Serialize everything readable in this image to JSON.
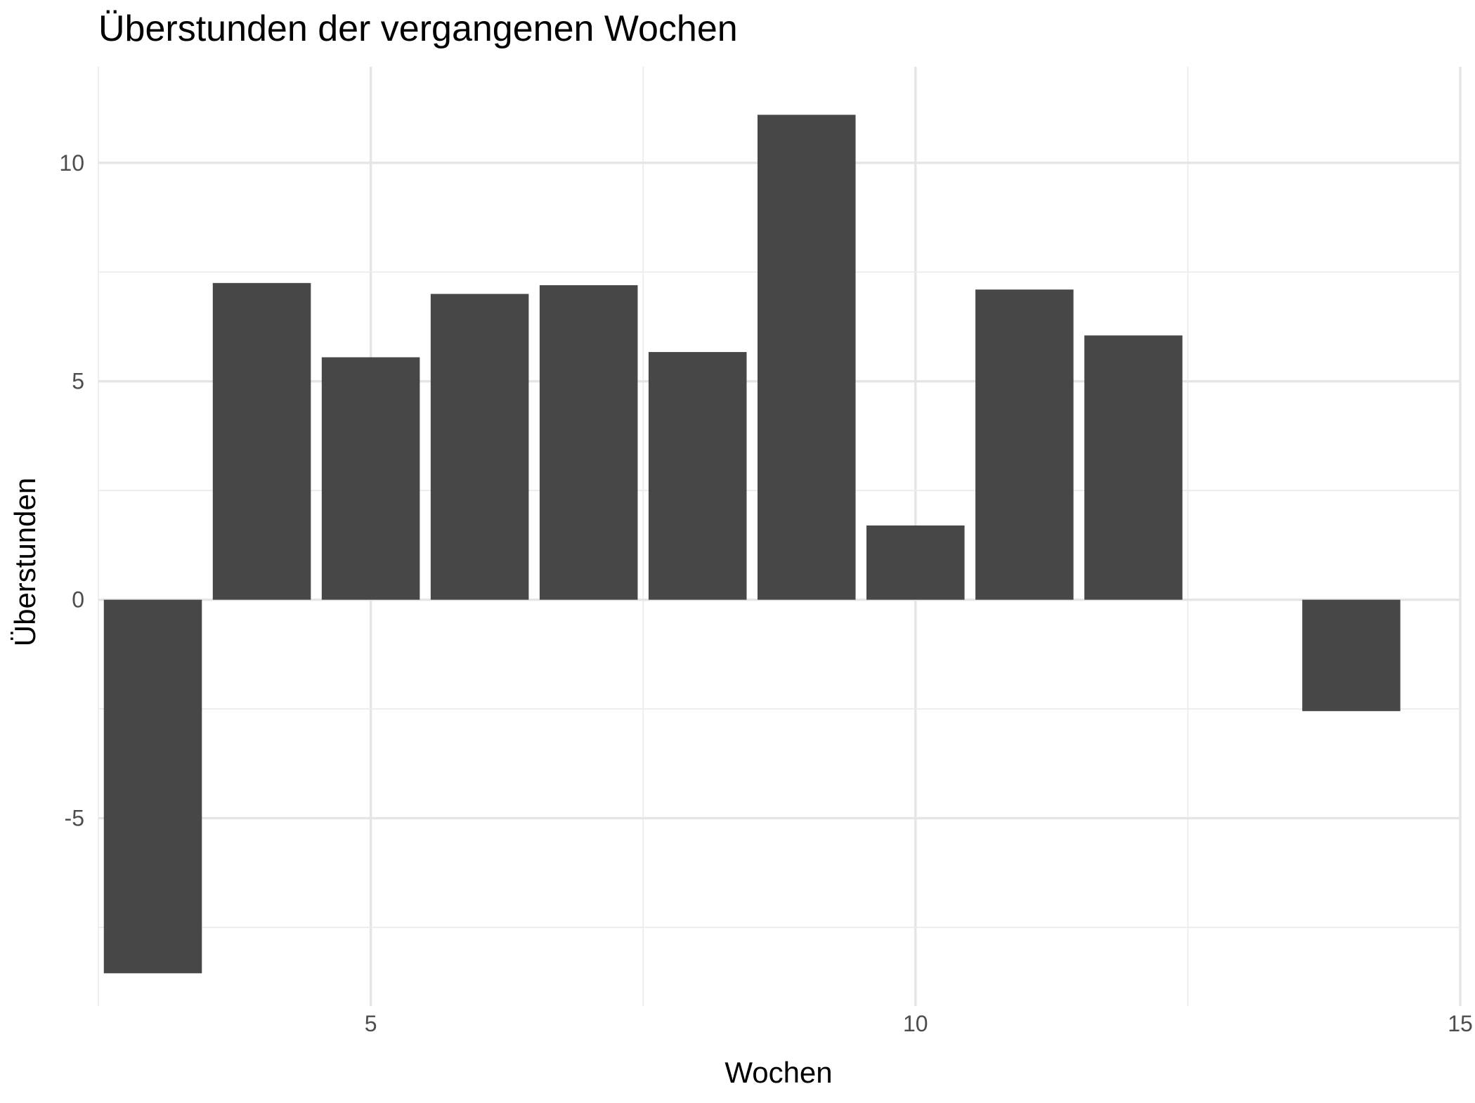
{
  "chart_data": {
    "type": "bar",
    "title": "Überstunden der vergangenen Wochen",
    "xlabel": "Wochen",
    "ylabel": "Überstunden",
    "x": [
      3,
      4,
      5,
      6,
      7,
      8,
      9,
      10,
      11,
      12,
      14
    ],
    "values": [
      -8.55,
      7.25,
      5.55,
      7.0,
      7.2,
      5.67,
      11.1,
      1.7,
      7.1,
      6.05,
      -2.55
    ],
    "xlim": [
      2.5,
      15.0
    ],
    "ylim": [
      -9.3,
      12.2
    ],
    "x_ticks": [
      5,
      10,
      15
    ],
    "x_tick_labels": [
      "5",
      "10",
      "15"
    ],
    "y_ticks": [
      -5,
      0,
      5,
      10
    ],
    "y_tick_labels": [
      "-5",
      "0",
      "5",
      "10"
    ],
    "bar_color": "#474747",
    "grid": true,
    "legend": false
  }
}
